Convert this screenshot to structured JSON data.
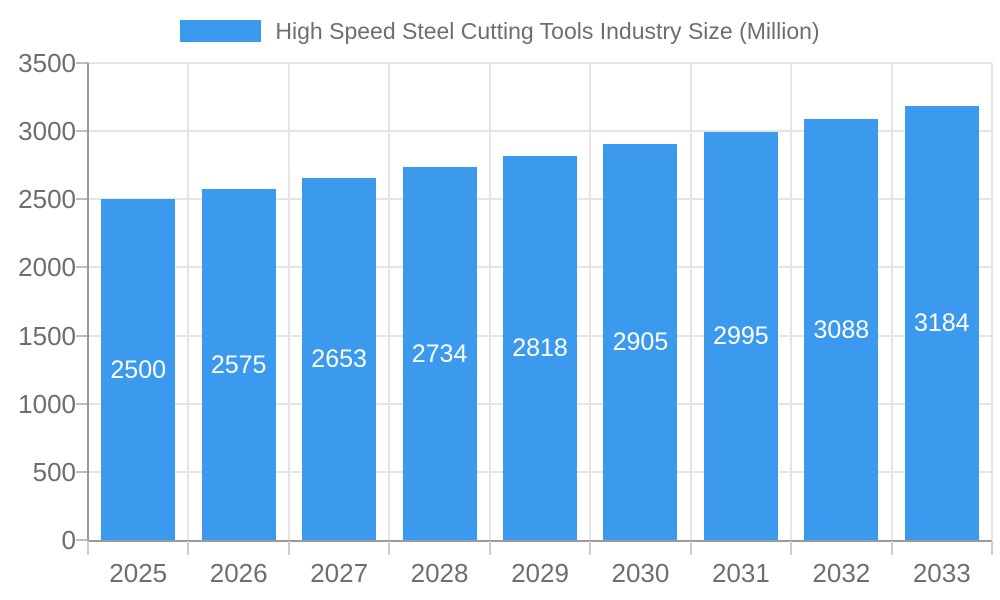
{
  "colors": {
    "bar": "#3b99ee",
    "grid": "#e5e5e5",
    "axis": "#9a9a9a",
    "y_tick": "#bdbdbd",
    "x_tick": "#cccccc",
    "text": "#6e6e6e",
    "value_label": "#ffffff",
    "background": "#ffffff"
  },
  "legend": {
    "label": "High Speed Steel Cutting Tools Industry Size (Million)"
  },
  "chart_data": {
    "type": "bar",
    "title": "High Speed Steel Cutting Tools Industry Size (Million)",
    "categories": [
      "2025",
      "2026",
      "2027",
      "2028",
      "2029",
      "2030",
      "2031",
      "2032",
      "2033"
    ],
    "values": [
      2500,
      2575,
      2653,
      2734,
      2818,
      2905,
      2995,
      3088,
      3184
    ],
    "xlabel": "",
    "ylabel": "",
    "ylim": [
      0,
      3500
    ],
    "ytick_step": 500,
    "ytick_labels": [
      "0",
      "500",
      "1000",
      "1500",
      "2000",
      "2500",
      "3000",
      "3500"
    ],
    "grid": true,
    "legend_position": "top-center",
    "value_label_position": "inside-center",
    "bar_color": "#3b99ee"
  }
}
